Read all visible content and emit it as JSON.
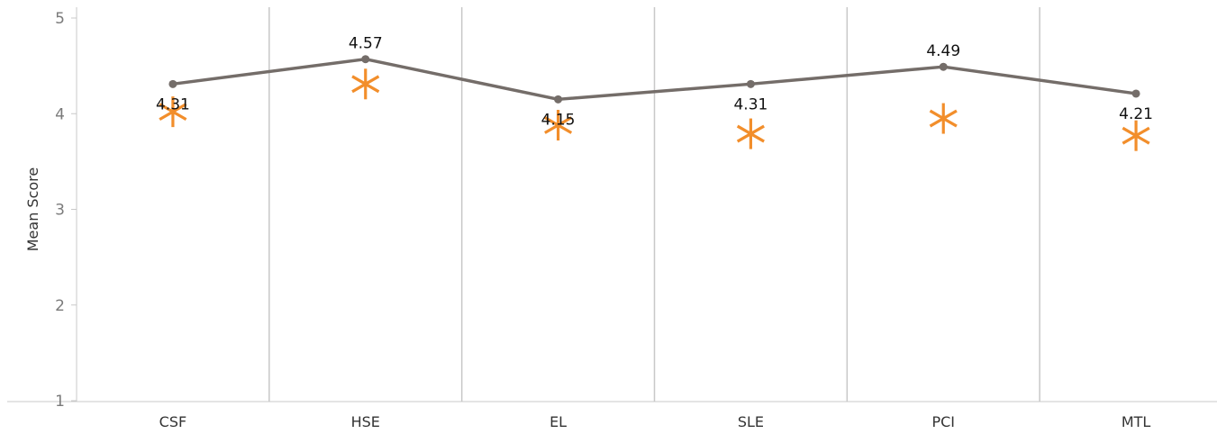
{
  "chart_data": {
    "type": "line",
    "title": "",
    "xlabel": "",
    "ylabel": "Mean Score",
    "ylim": [
      1,
      5
    ],
    "yticks": [
      1,
      2,
      3,
      4,
      5
    ],
    "categories": [
      "CSF",
      "HSE",
      "EL",
      "SLE",
      "PCI",
      "MTL"
    ],
    "series": [
      {
        "kind": "line",
        "values": [
          4.31,
          4.57,
          4.15,
          4.31,
          4.49,
          4.21
        ],
        "data_labels": [
          "4.31",
          "4.57",
          "4.15",
          "4.31",
          "4.49",
          "4.21"
        ],
        "color": "#746d69"
      },
      {
        "kind": "asterisk",
        "values": [
          4.02,
          4.31,
          3.88,
          3.79,
          3.95,
          3.77
        ],
        "color": "#f28e2b"
      }
    ],
    "grid": {
      "vertical": true,
      "horizontal": false
    },
    "legend": "none"
  }
}
